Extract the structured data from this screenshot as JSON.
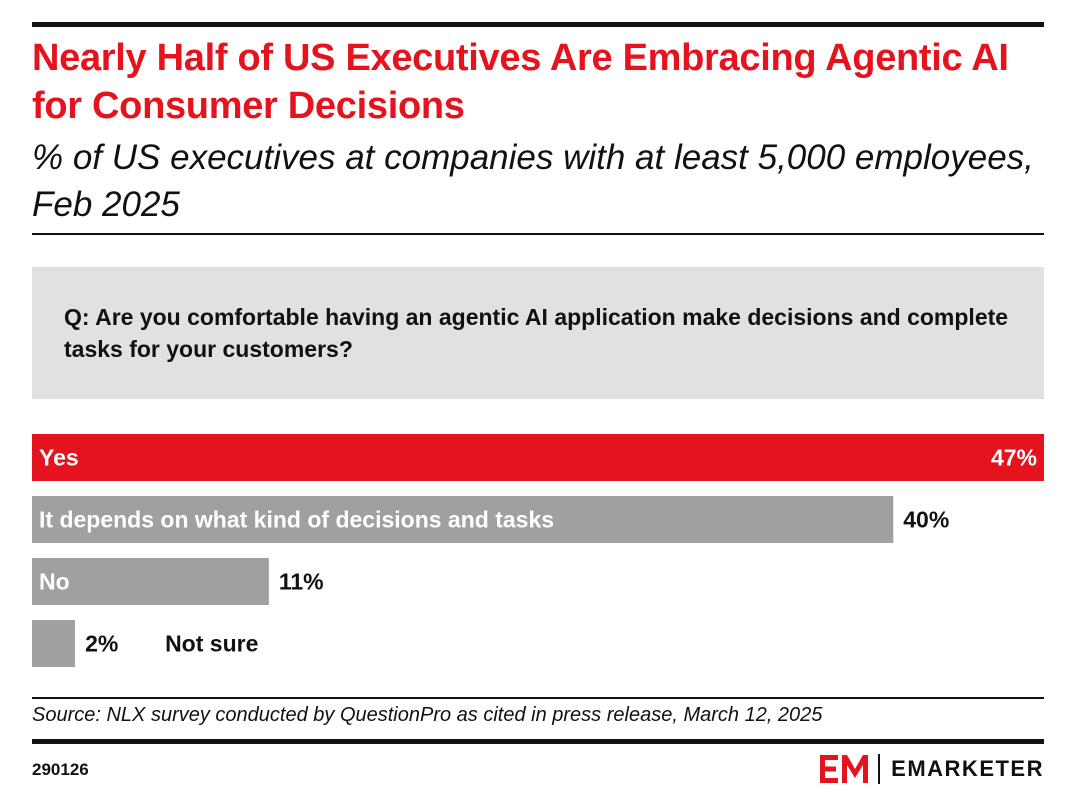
{
  "header": {
    "title": "Nearly Half of US Executives Are Embracing Agentic AI for Consumer Decisions",
    "subtitle": "% of US executives at companies with at least 5,000 employees, Feb 2025"
  },
  "question": "Q: Are you comfortable having an agentic AI application make decisions and complete tasks for your customers?",
  "chart_data": {
    "type": "bar",
    "orientation": "horizontal",
    "categories": [
      "Yes",
      "It depends on what kind of decisions and tasks",
      "No",
      "Not sure"
    ],
    "values": [
      47,
      40,
      11,
      2
    ],
    "value_labels": [
      "47%",
      "40%",
      "11%",
      "2%"
    ],
    "xlim": [
      0,
      47
    ],
    "colors": [
      "#e5131d",
      "#a0a0a0",
      "#a0a0a0",
      "#a0a0a0"
    ],
    "grid": false,
    "legend": "none"
  },
  "footer": {
    "source": "Source: NLX survey conducted by QuestionPro as cited in press release, March 12, 2025",
    "chart_id": "290126",
    "brand_mark": "EM",
    "brand_name": "EMARKETER"
  },
  "colors": {
    "accent": "#e5131d",
    "bar_gray": "#a0a0a0",
    "question_bg": "#e1e1e1"
  }
}
